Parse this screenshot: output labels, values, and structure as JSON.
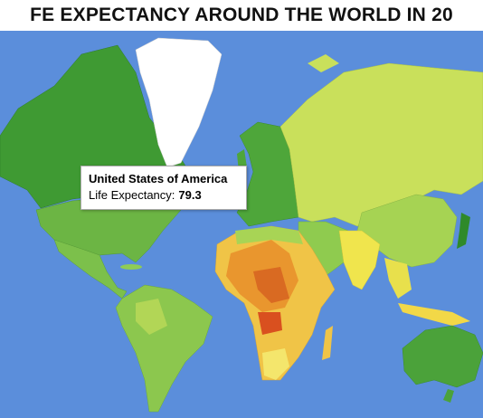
{
  "header": {
    "title": "FE EXPECTANCY AROUND THE WORLD IN 20"
  },
  "tooltip": {
    "country": "United States of America",
    "label": "Life Expectancy:",
    "value": 79.3
  }
}
